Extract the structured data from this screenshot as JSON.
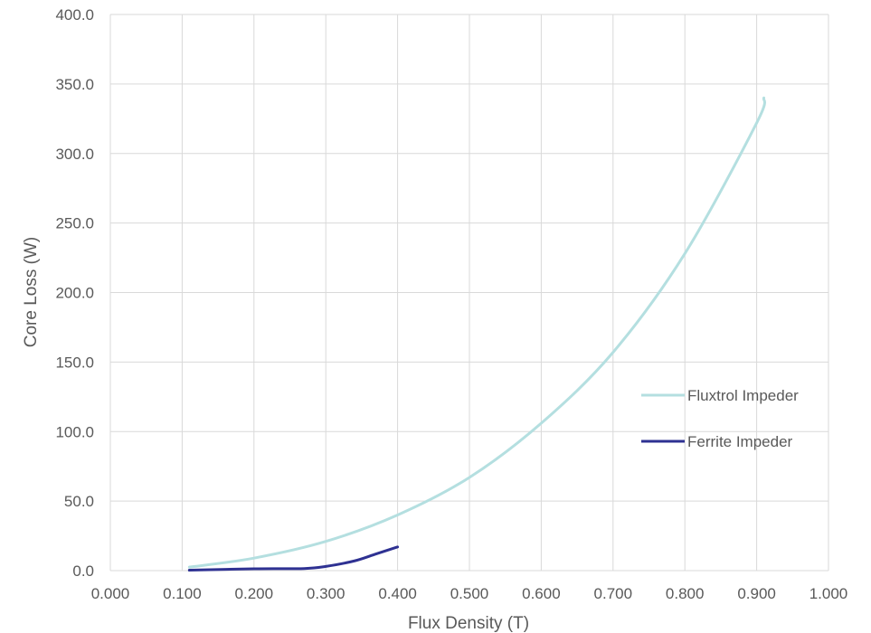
{
  "chart_data": {
    "type": "line",
    "xlabel": "Flux Density (T)",
    "ylabel": "Core Loss (W)",
    "xlim": [
      0,
      1
    ],
    "ylim": [
      0,
      400
    ],
    "x_ticks": [
      "0.000",
      "0.100",
      "0.200",
      "0.300",
      "0.400",
      "0.500",
      "0.600",
      "0.700",
      "0.800",
      "0.900",
      "1.000"
    ],
    "y_ticks": [
      "0.0",
      "50.0",
      "100.0",
      "150.0",
      "200.0",
      "250.0",
      "300.0",
      "350.0",
      "400.0"
    ],
    "grid": true,
    "legend_position": "right",
    "series": [
      {
        "name": "Fluxtrol Impeder",
        "color": "#b4dfe0",
        "x": [
          0.11,
          0.2,
          0.3,
          0.4,
          0.5,
          0.6,
          0.7,
          0.8,
          0.9,
          0.91
        ],
        "y": [
          2.5,
          9,
          21,
          40,
          67,
          106,
          157,
          228,
          322,
          340
        ]
      },
      {
        "name": "Ferrite Impeder",
        "color": "#2e3192",
        "x": [
          0.11,
          0.2,
          0.27,
          0.3,
          0.34,
          0.37,
          0.4
        ],
        "y": [
          0.3,
          1.3,
          1.5,
          3,
          7,
          12,
          17
        ]
      }
    ]
  }
}
